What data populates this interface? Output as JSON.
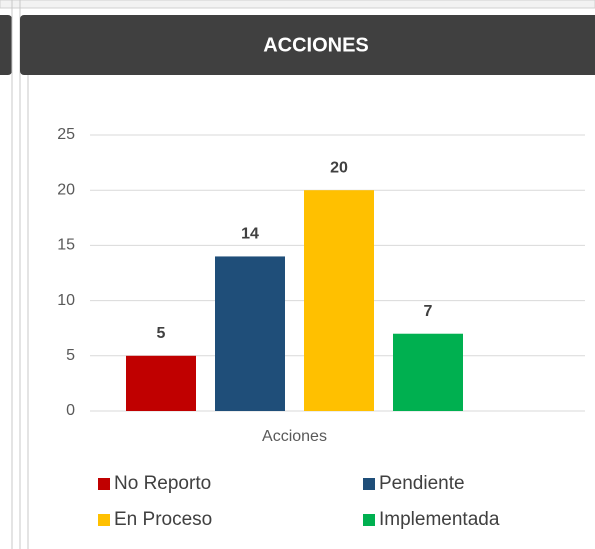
{
  "chart_data": {
    "type": "bar",
    "title": "ACCIONES",
    "categories": [
      "Acciones"
    ],
    "series": [
      {
        "name": "No Reporto",
        "color": "#c00000",
        "values": [
          5
        ]
      },
      {
        "name": "Pendiente",
        "color": "#1f4e79",
        "values": [
          14
        ]
      },
      {
        "name": "En Proceso",
        "color": "#ffc000",
        "values": [
          20
        ]
      },
      {
        "name": "Implementada",
        "color": "#00b050",
        "values": [
          7
        ]
      }
    ],
    "ylim": [
      0,
      25
    ],
    "yticks": [
      0,
      5,
      10,
      15,
      20,
      25
    ],
    "grid": true,
    "legend": "bottom"
  }
}
